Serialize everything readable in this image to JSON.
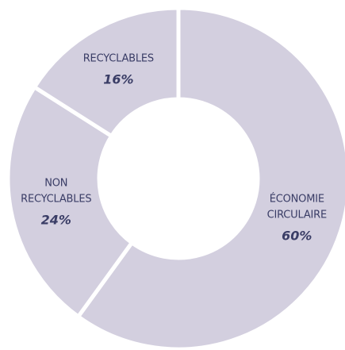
{
  "chart_data": {
    "type": "donut",
    "categories": [
      "ÉCONOMIE CIRCULAIRE",
      "NON RECYCLABLES",
      "RECYCLABLES"
    ],
    "values": [
      60,
      24,
      16
    ],
    "value_labels": [
      "60%",
      "24%",
      "16%"
    ],
    "color": "#d3cfdf"
  }
}
